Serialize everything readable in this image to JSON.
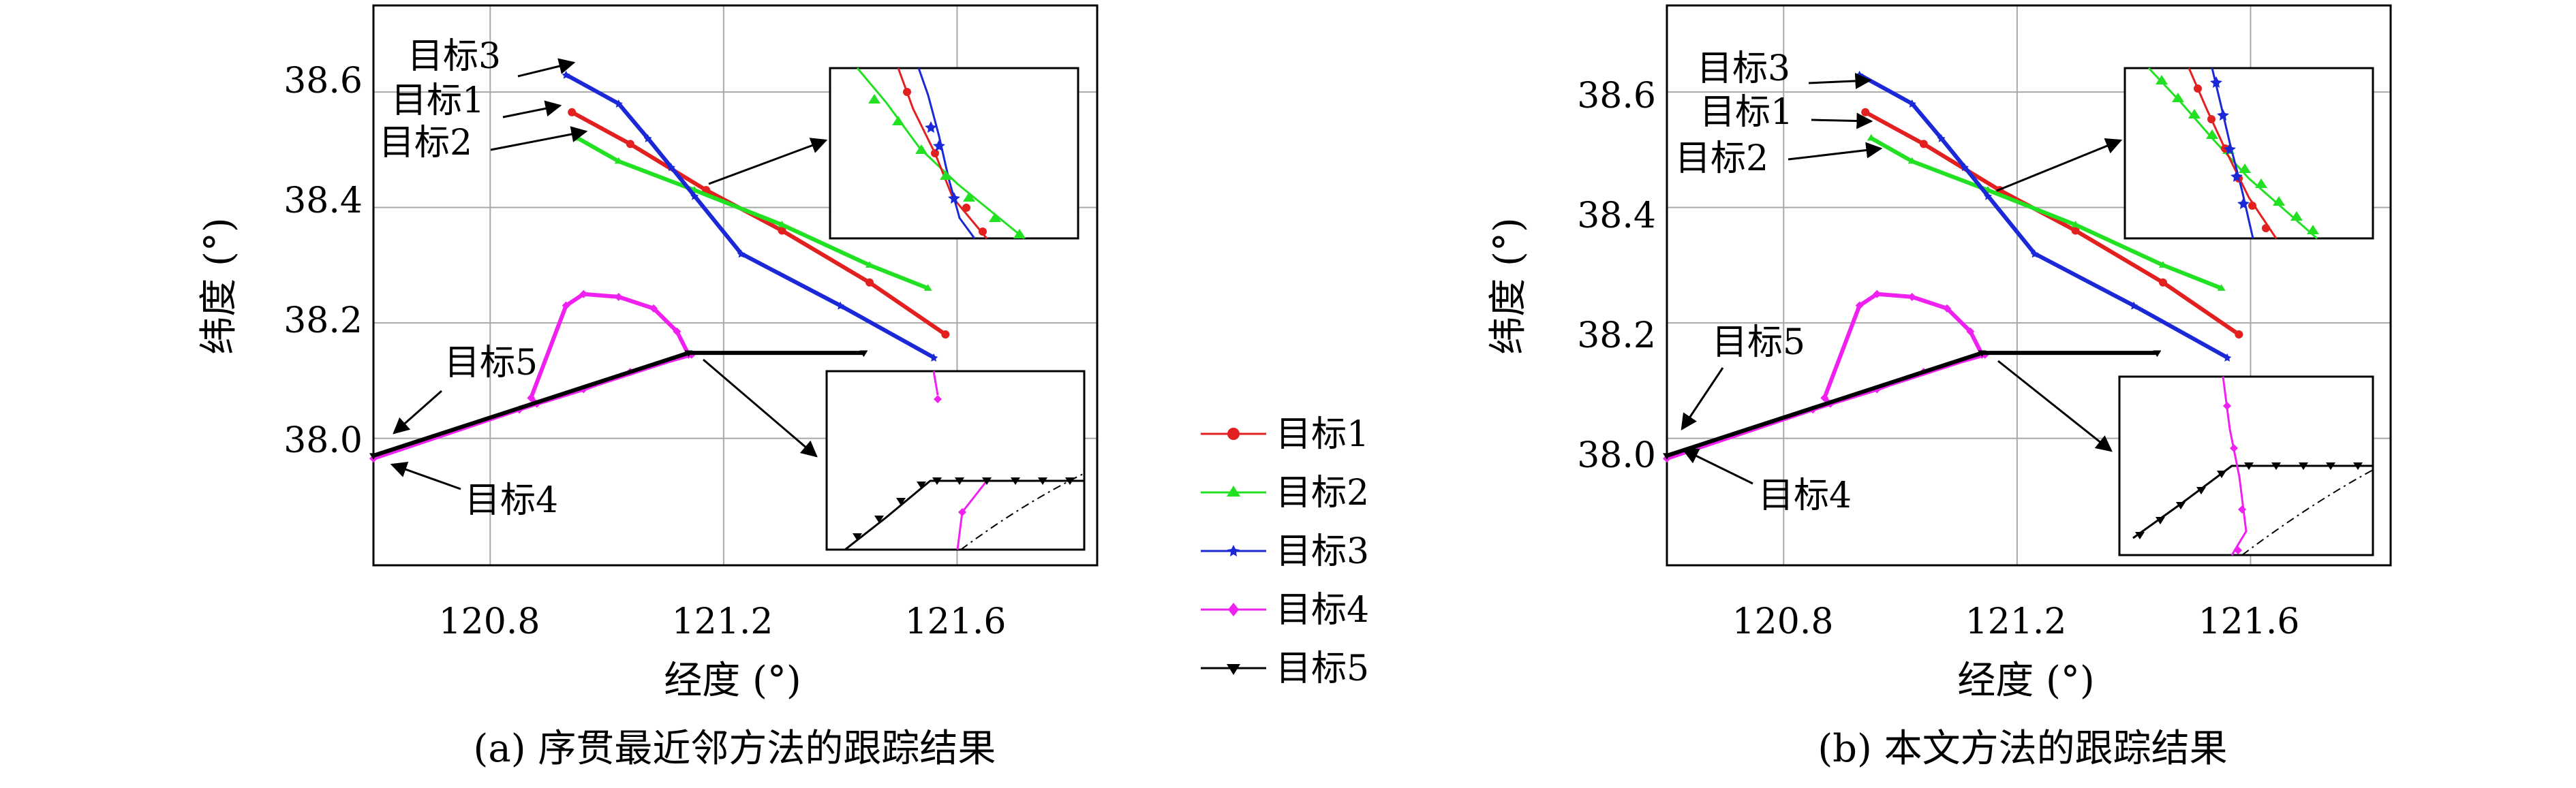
{
  "legend": [
    {
      "label": "目标1",
      "color": "#e32020",
      "marker": "circle"
    },
    {
      "label": "目标2",
      "color": "#22e022",
      "marker": "triangle-up"
    },
    {
      "label": "目标3",
      "color": "#1a28d8",
      "marker": "star"
    },
    {
      "label": "目标4",
      "color": "#f020f0",
      "marker": "diamond"
    },
    {
      "label": "目标5",
      "color": "#000000",
      "marker": "triangle-down"
    }
  ],
  "chart_data": [
    {
      "type": "line",
      "caption": "(a) 序贯最近邻方法的跟踪结果",
      "xlabel": "经度 (°)",
      "ylabel": "纬度 (°)",
      "xlim": [
        120.6,
        121.84
      ],
      "ylim": [
        37.78,
        38.75
      ],
      "xticks": [
        "120.8",
        "121.2",
        "121.6"
      ],
      "yticks": [
        "38.0",
        "38.2",
        "38.4",
        "38.6"
      ],
      "grid": true,
      "series": [
        {
          "name": "目标1",
          "x": [
            120.94,
            121.04,
            121.17,
            121.3,
            121.45,
            121.58
          ],
          "y": [
            38.565,
            38.51,
            38.43,
            38.36,
            38.27,
            38.18
          ]
        },
        {
          "name": "目标2",
          "x": [
            120.95,
            121.02,
            121.15,
            121.3,
            121.45,
            121.55
          ],
          "y": [
            38.52,
            38.48,
            38.43,
            38.37,
            38.3,
            38.26
          ]
        },
        {
          "name": "目标3",
          "x": [
            120.93,
            121.02,
            121.07,
            121.11,
            121.15,
            121.23,
            121.4,
            121.56
          ],
          "y": [
            38.63,
            38.58,
            38.52,
            38.47,
            38.42,
            38.32,
            38.23,
            38.14
          ]
        },
        {
          "name": "目标4",
          "x": [
            120.6,
            120.85,
            121.14,
            121.14,
            121.12,
            121.08,
            121.02,
            120.96,
            120.93,
            120.87,
            120.88,
            120.96,
            121.04,
            121.145
          ],
          "y": [
            37.965,
            38.05,
            38.145,
            38.145,
            38.185,
            38.225,
            38.245,
            38.25,
            38.23,
            38.07,
            38.06,
            38.085,
            38.115,
            38.145
          ]
        },
        {
          "name": "目标5",
          "x": [
            120.6,
            121.14,
            121.44
          ],
          "y": [
            37.97,
            38.148,
            38.148
          ]
        }
      ],
      "annotations": [
        {
          "text": "目标3",
          "x": 120.93,
          "y": 38.63
        },
        {
          "text": "目标1",
          "x": 120.94,
          "y": 38.565
        },
        {
          "text": "目标2",
          "x": 120.95,
          "y": 38.52
        },
        {
          "text": "目标5",
          "x": 120.61,
          "y": 37.99
        },
        {
          "text": "目标4",
          "x": 120.61,
          "y": 37.955
        }
      ]
    },
    {
      "type": "line",
      "caption": "(b) 本文方法的跟踪结果",
      "xlabel": "经度 (°)",
      "ylabel": "纬度 (°)",
      "xlim": [
        120.6,
        121.84
      ],
      "ylim": [
        37.78,
        38.75
      ],
      "xticks": [
        "120.8",
        "121.2",
        "121.6"
      ],
      "yticks": [
        "38.0",
        "38.2",
        "38.4",
        "38.6"
      ],
      "grid": true,
      "series": [
        {
          "name": "目标1",
          "x": [
            120.94,
            121.04,
            121.17,
            121.3,
            121.45,
            121.58
          ],
          "y": [
            38.565,
            38.51,
            38.43,
            38.36,
            38.27,
            38.18
          ]
        },
        {
          "name": "目标2",
          "x": [
            120.95,
            121.02,
            121.15,
            121.3,
            121.45,
            121.55
          ],
          "y": [
            38.52,
            38.48,
            38.43,
            38.37,
            38.3,
            38.26
          ]
        },
        {
          "name": "目标3",
          "x": [
            120.93,
            121.02,
            121.07,
            121.11,
            121.15,
            121.23,
            121.4,
            121.56
          ],
          "y": [
            38.63,
            38.58,
            38.52,
            38.47,
            38.42,
            38.32,
            38.23,
            38.14
          ]
        },
        {
          "name": "目标4",
          "x": [
            120.6,
            120.85,
            121.14,
            121.14,
            121.12,
            121.08,
            121.02,
            120.96,
            120.93,
            120.87,
            120.88,
            120.96,
            121.04,
            121.145
          ],
          "y": [
            37.965,
            38.05,
            38.145,
            38.145,
            38.185,
            38.225,
            38.245,
            38.25,
            38.23,
            38.07,
            38.06,
            38.085,
            38.115,
            38.145
          ]
        },
        {
          "name": "目标5",
          "x": [
            120.6,
            121.14,
            121.44
          ],
          "y": [
            37.97,
            38.148,
            38.148
          ]
        }
      ],
      "annotations": [
        {
          "text": "目标3",
          "x": 120.93,
          "y": 38.63
        },
        {
          "text": "目标1",
          "x": 120.94,
          "y": 38.565
        },
        {
          "text": "目标2",
          "x": 120.95,
          "y": 38.52
        },
        {
          "text": "目标5",
          "x": 120.61,
          "y": 37.99
        },
        {
          "text": "目标4",
          "x": 120.61,
          "y": 37.955
        }
      ]
    }
  ]
}
